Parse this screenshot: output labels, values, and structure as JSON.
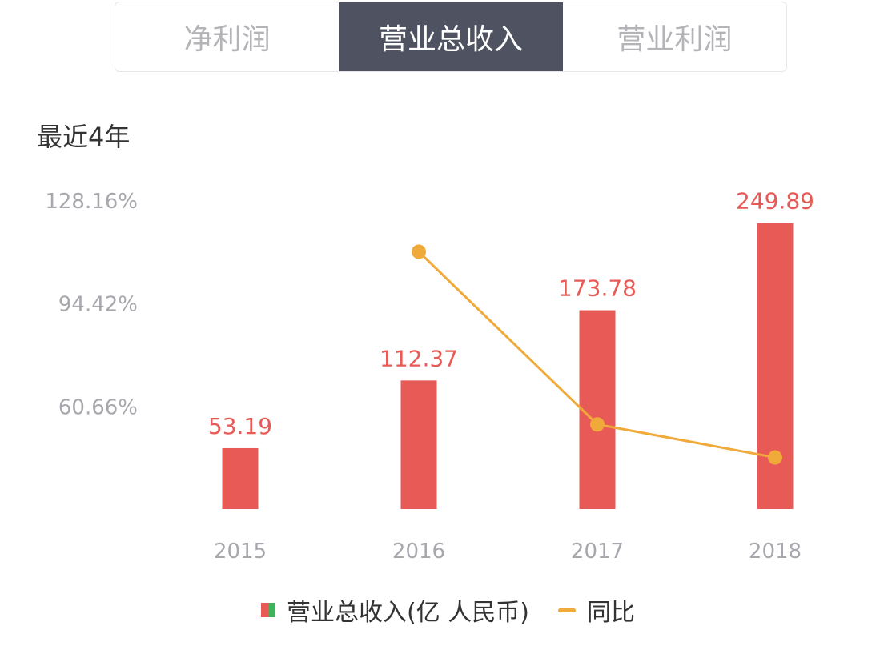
{
  "tabs": [
    {
      "label": "净利润",
      "active": false
    },
    {
      "label": "营业总收入",
      "active": true
    },
    {
      "label": "营业利润",
      "active": false
    }
  ],
  "period_label": "最近4年",
  "legend": {
    "bar_label": "营业总收入(亿 人民币)",
    "line_label": "同比"
  },
  "colors": {
    "bar": "#e85a55",
    "bar_swatch_left": "#e85a55",
    "bar_swatch_right": "#3fb25c",
    "line": "#f0aa3a",
    "axis_text": "#a7a7ad",
    "tab_active_bg": "#4f5260"
  },
  "chart_data": {
    "type": "bar",
    "categories": [
      "2015",
      "2016",
      "2017",
      "2018"
    ],
    "series": [
      {
        "name": "营业总收入(亿 人民币)",
        "type": "bar",
        "values": [
          53.19,
          112.37,
          173.78,
          249.89
        ],
        "labels": [
          "53.19",
          "112.37",
          "173.78",
          "249.89"
        ]
      },
      {
        "name": "同比",
        "type": "line",
        "axis": "right-percent",
        "values": [
          null,
          111.26,
          54.65,
          43.8
        ]
      }
    ],
    "bar_ylim": [
      0,
      270
    ],
    "percent_axis": {
      "ticks": [
        60.66,
        94.42,
        128.16
      ],
      "tick_labels": [
        "60.66%",
        "94.42%",
        "128.16%"
      ],
      "ylim": [
        26.9,
        128.16
      ]
    }
  }
}
